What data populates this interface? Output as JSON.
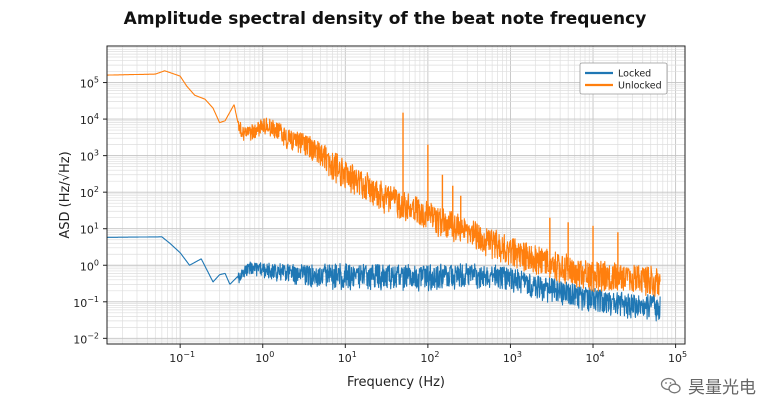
{
  "chart_data": {
    "type": "line",
    "title": "Amplitude spectral density of the beat note frequency",
    "xlabel": "Frequency (Hz)",
    "ylabel": "ASD (Hz/√Hz)",
    "xscale": "log",
    "yscale": "log",
    "xlim": [
      0.013,
      130000
    ],
    "ylim": [
      0.007,
      1000000
    ],
    "x_ticks": [
      {
        "value": 0.1,
        "base": "10",
        "exp": "−1"
      },
      {
        "value": 1,
        "base": "10",
        "exp": "0"
      },
      {
        "value": 10,
        "base": "10",
        "exp": "1"
      },
      {
        "value": 100,
        "base": "10",
        "exp": "2"
      },
      {
        "value": 1000,
        "base": "10",
        "exp": "3"
      },
      {
        "value": 10000,
        "base": "10",
        "exp": "4"
      },
      {
        "value": 100000,
        "base": "10",
        "exp": "5"
      }
    ],
    "y_ticks": [
      {
        "value": 0.01,
        "base": "10",
        "exp": "−2"
      },
      {
        "value": 0.1,
        "base": "10",
        "exp": "−1"
      },
      {
        "value": 1,
        "base": "10",
        "exp": "0"
      },
      {
        "value": 10,
        "base": "10",
        "exp": "1"
      },
      {
        "value": 100,
        "base": "10",
        "exp": "2"
      },
      {
        "value": 1000,
        "base": "10",
        "exp": "3"
      },
      {
        "value": 10000,
        "base": "10",
        "exp": "4"
      },
      {
        "value": 100000,
        "base": "10",
        "exp": "5"
      }
    ],
    "grid": true,
    "legend_position": "top-right",
    "series": [
      {
        "name": "Locked",
        "color": "#1f77b4",
        "trend": {
          "x": [
            0.013,
            0.06,
            0.075,
            0.1,
            0.13,
            0.18,
            0.25,
            0.3,
            0.35,
            0.4,
            0.5,
            0.7,
            1,
            3,
            10,
            30,
            100,
            300,
            1000,
            3000,
            10000,
            30000,
            65000
          ],
          "y": [
            5.8,
            6.0,
            4.0,
            2.2,
            1.0,
            1.5,
            0.35,
            0.55,
            0.6,
            0.3,
            0.5,
            0.9,
            0.8,
            0.62,
            0.58,
            0.55,
            0.55,
            0.6,
            0.5,
            0.25,
            0.13,
            0.09,
            0.08
          ]
        },
        "noise_decades_high": 0.28,
        "noise_decades_low": 0.45,
        "noise_start": 0.5,
        "spikes": []
      },
      {
        "name": "Unlocked",
        "color": "#ff7f0e",
        "trend": {
          "x": [
            0.013,
            0.05,
            0.065,
            0.1,
            0.12,
            0.15,
            0.2,
            0.25,
            0.3,
            0.35,
            0.45,
            0.5,
            0.6,
            0.8,
            1,
            1.5,
            2,
            3,
            5,
            10,
            30,
            100,
            300,
            1000,
            3000,
            10000,
            30000,
            65000
          ],
          "y": [
            160000,
            170000,
            210000,
            150000,
            80000,
            45000,
            35000,
            20000,
            8000,
            9000,
            25000,
            8000,
            4000,
            5000,
            7000,
            5500,
            3000,
            2500,
            1200,
            350,
            80,
            25,
            9,
            3,
            1.2,
            0.6,
            0.5,
            0.4
          ]
        },
        "noise_decades_high": 0.35,
        "noise_decades_low": 0.5,
        "noise_start": 0.5,
        "spikes": [
          [
            50,
            15000
          ],
          [
            100,
            2000
          ],
          [
            150,
            300
          ],
          [
            200,
            150
          ],
          [
            250,
            80
          ],
          [
            3000,
            20
          ],
          [
            5000,
            15
          ],
          [
            10000,
            12
          ],
          [
            20000,
            8
          ]
        ]
      }
    ]
  },
  "watermark": {
    "text": "昊量光电",
    "icon": "wechat-icon"
  }
}
